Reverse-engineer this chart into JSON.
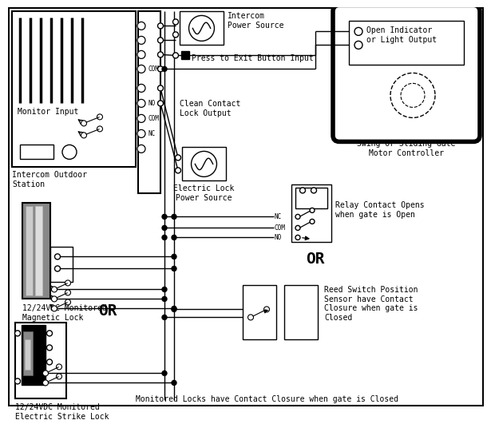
{
  "bg": "#ffffff",
  "lc": "#000000",
  "fs": 7,
  "fs_small": 5.5,
  "labels": {
    "monitor_input": "Monitor Input",
    "intercom_outdoor": "Intercom Outdoor\nStation",
    "intercom_ps": "Intercom\nPower Source",
    "press_exit": "Press to Exit Button Input",
    "clean_contact": "Clean Contact\nLock Output",
    "electric_lock_ps": "Electric Lock\nPower Source",
    "magnetic_lock": "12/24VDC Monitored\nMagnetic Lock",
    "electric_strike": "12/24VDC Monitored\nElectric Strike Lock",
    "swing_gate": "Swing or Sliding Gate\nMotor Controller",
    "open_indicator": "Open Indicator\nor Light Output",
    "relay_contact": "Relay Contact Opens\nwhen gate is Open",
    "reed_switch": "Reed Switch Position\nSensor have Contact\nClosure when gate is\nClosed",
    "or1": "OR",
    "or2": "OR",
    "footer": "Monitored Locks have Contact Closure when gate is Closed"
  }
}
